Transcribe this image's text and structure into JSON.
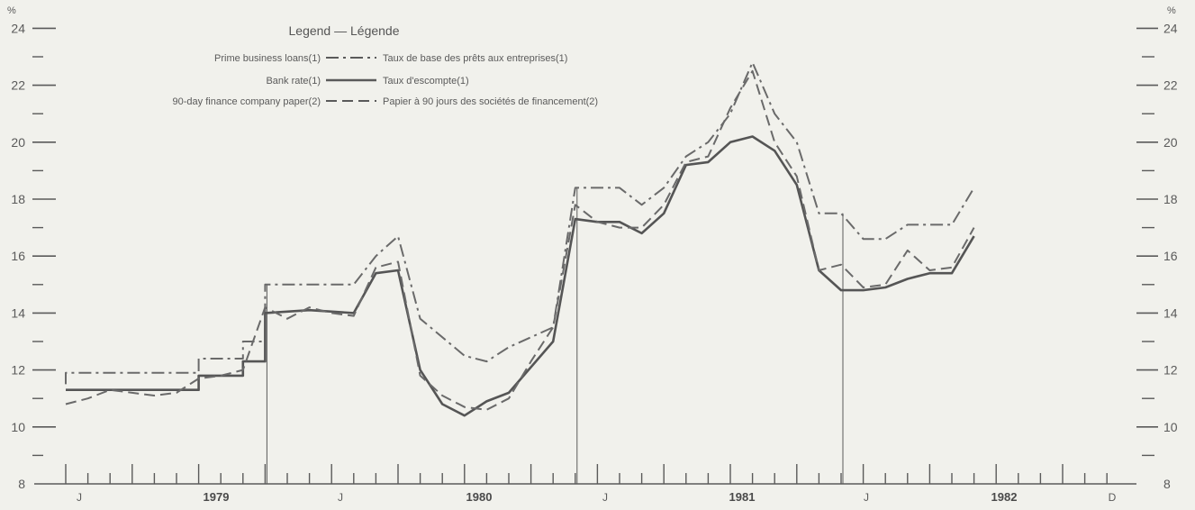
{
  "chart_data": {
    "type": "line",
    "ylim": [
      8,
      24
    ],
    "y_unit_left": "%",
    "y_unit_right": "%",
    "y_ticks_labeled": [
      8,
      10,
      12,
      14,
      16,
      18,
      20,
      22,
      24
    ],
    "y_ticks_minor": [
      9,
      11,
      13,
      15,
      17,
      19,
      21,
      23
    ],
    "x_tick_labels": [
      "J",
      "1979",
      "J",
      "1980",
      "J",
      "1981",
      "J",
      "1982",
      "D"
    ],
    "legend": {
      "title": "Legend — Légende",
      "placement": "top-left",
      "entries": [
        {
          "en": "Prime business loans(1)",
          "fr": "Taux de base des prêts aux entreprises(1)",
          "style": "dash-dot"
        },
        {
          "en": "Bank rate(1)",
          "fr": "Taux d'escompte(1)",
          "style": "solid"
        },
        {
          "en": "90-day finance company paper(2)",
          "fr": "Papier à 90 jours des sociétés de financement(2)",
          "style": "dashed"
        }
      ]
    },
    "period_start": "1979-01",
    "period_end": "1982-12",
    "series": [
      {
        "name": "Prime business loans(1)",
        "style": "dash-dot",
        "color": "#6a6a6a",
        "points": [
          [
            "1979-01",
            11.5
          ],
          [
            "1979-01",
            11.9
          ],
          [
            "1979-03",
            11.9
          ],
          [
            "1979-05",
            11.9
          ],
          [
            "1979-07",
            11.9
          ],
          [
            "1979-07",
            12.4
          ],
          [
            "1979-09",
            12.4
          ],
          [
            "1979-09",
            13.0
          ],
          [
            "1979-10",
            13.0
          ],
          [
            "1979-10",
            15.0
          ],
          [
            "1979-12",
            15.0
          ],
          [
            "1980-02",
            15.0
          ],
          [
            "1980-03",
            16.0
          ],
          [
            "1980-04",
            16.7
          ],
          [
            "1980-05",
            13.8
          ],
          [
            "1980-07",
            12.5
          ],
          [
            "1980-08",
            12.3
          ],
          [
            "1980-09",
            12.8
          ],
          [
            "1980-11",
            13.5
          ],
          [
            "1980-12",
            18.4
          ],
          [
            "1981-01",
            18.4
          ],
          [
            "1981-02",
            18.4
          ],
          [
            "1981-03",
            17.8
          ],
          [
            "1981-04",
            18.4
          ],
          [
            "1981-05",
            19.5
          ],
          [
            "1981-06",
            20.0
          ],
          [
            "1981-07",
            21.0
          ],
          [
            "1981-08",
            22.8
          ],
          [
            "1981-09",
            21.0
          ],
          [
            "1981-10",
            20.0
          ],
          [
            "1981-11",
            17.5
          ],
          [
            "1981-12",
            17.5
          ],
          [
            "1982-01",
            16.6
          ],
          [
            "1982-02",
            16.6
          ],
          [
            "1982-03",
            17.1
          ],
          [
            "1982-05",
            17.1
          ],
          [
            "1982-06",
            18.4
          ]
        ]
      },
      {
        "name": "Bank rate(1)",
        "style": "solid",
        "color": "#555555",
        "points": [
          [
            "1979-01",
            11.3
          ],
          [
            "1979-03",
            11.3
          ],
          [
            "1979-05",
            11.3
          ],
          [
            "1979-07",
            11.3
          ],
          [
            "1979-07",
            11.8
          ],
          [
            "1979-09",
            11.8
          ],
          [
            "1979-09",
            12.3
          ],
          [
            "1979-10",
            12.3
          ],
          [
            "1979-10",
            14.0
          ],
          [
            "1979-12",
            14.1
          ],
          [
            "1980-02",
            14.0
          ],
          [
            "1980-03",
            15.4
          ],
          [
            "1980-04",
            15.5
          ],
          [
            "1980-05",
            12.0
          ],
          [
            "1980-06",
            10.8
          ],
          [
            "1980-07",
            10.4
          ],
          [
            "1980-08",
            10.9
          ],
          [
            "1980-09",
            11.2
          ],
          [
            "1980-11",
            13.0
          ],
          [
            "1980-12",
            17.3
          ],
          [
            "1981-01",
            17.2
          ],
          [
            "1981-02",
            17.2
          ],
          [
            "1981-03",
            16.8
          ],
          [
            "1981-04",
            17.5
          ],
          [
            "1981-05",
            19.2
          ],
          [
            "1981-06",
            19.3
          ],
          [
            "1981-07",
            20.0
          ],
          [
            "1981-08",
            20.2
          ],
          [
            "1981-09",
            19.7
          ],
          [
            "1981-10",
            18.5
          ],
          [
            "1981-11",
            15.5
          ],
          [
            "1981-12",
            14.8
          ],
          [
            "1982-01",
            14.8
          ],
          [
            "1982-02",
            14.9
          ],
          [
            "1982-03",
            15.2
          ],
          [
            "1982-04",
            15.4
          ],
          [
            "1982-05",
            15.4
          ],
          [
            "1982-06",
            16.7
          ]
        ]
      },
      {
        "name": "90-day finance company paper(2)",
        "style": "dashed",
        "color": "#6a6a6a",
        "points": [
          [
            "1979-01",
            10.8
          ],
          [
            "1979-02",
            11.0
          ],
          [
            "1979-03",
            11.3
          ],
          [
            "1979-04",
            11.2
          ],
          [
            "1979-05",
            11.1
          ],
          [
            "1979-06",
            11.2
          ],
          [
            "1979-07",
            11.7
          ],
          [
            "1979-08",
            11.8
          ],
          [
            "1979-09",
            12.0
          ],
          [
            "1979-10",
            14.2
          ],
          [
            "1979-11",
            13.8
          ],
          [
            "1979-12",
            14.2
          ],
          [
            "1980-01",
            14.0
          ],
          [
            "1980-02",
            13.9
          ],
          [
            "1980-03",
            15.6
          ],
          [
            "1980-04",
            15.8
          ],
          [
            "1980-05",
            11.8
          ],
          [
            "1980-06",
            11.1
          ],
          [
            "1980-07",
            10.7
          ],
          [
            "1980-08",
            10.6
          ],
          [
            "1980-09",
            11.0
          ],
          [
            "1980-10",
            12.3
          ],
          [
            "1980-11",
            13.5
          ],
          [
            "1980-12",
            17.8
          ],
          [
            "1981-01",
            17.2
          ],
          [
            "1981-02",
            17.0
          ],
          [
            "1981-03",
            17.0
          ],
          [
            "1981-04",
            17.8
          ],
          [
            "1981-05",
            19.3
          ],
          [
            "1981-06",
            19.5
          ],
          [
            "1981-07",
            21.2
          ],
          [
            "1981-08",
            22.5
          ],
          [
            "1981-09",
            20.0
          ],
          [
            "1981-10",
            18.8
          ],
          [
            "1981-11",
            15.5
          ],
          [
            "1981-12",
            15.7
          ],
          [
            "1982-01",
            14.9
          ],
          [
            "1982-02",
            15.0
          ],
          [
            "1982-03",
            16.2
          ],
          [
            "1982-04",
            15.5
          ],
          [
            "1982-05",
            15.6
          ],
          [
            "1982-06",
            17.0
          ]
        ]
      }
    ],
    "year_boundaries": [
      "1979-10",
      "1980-12",
      "1981-12"
    ]
  }
}
